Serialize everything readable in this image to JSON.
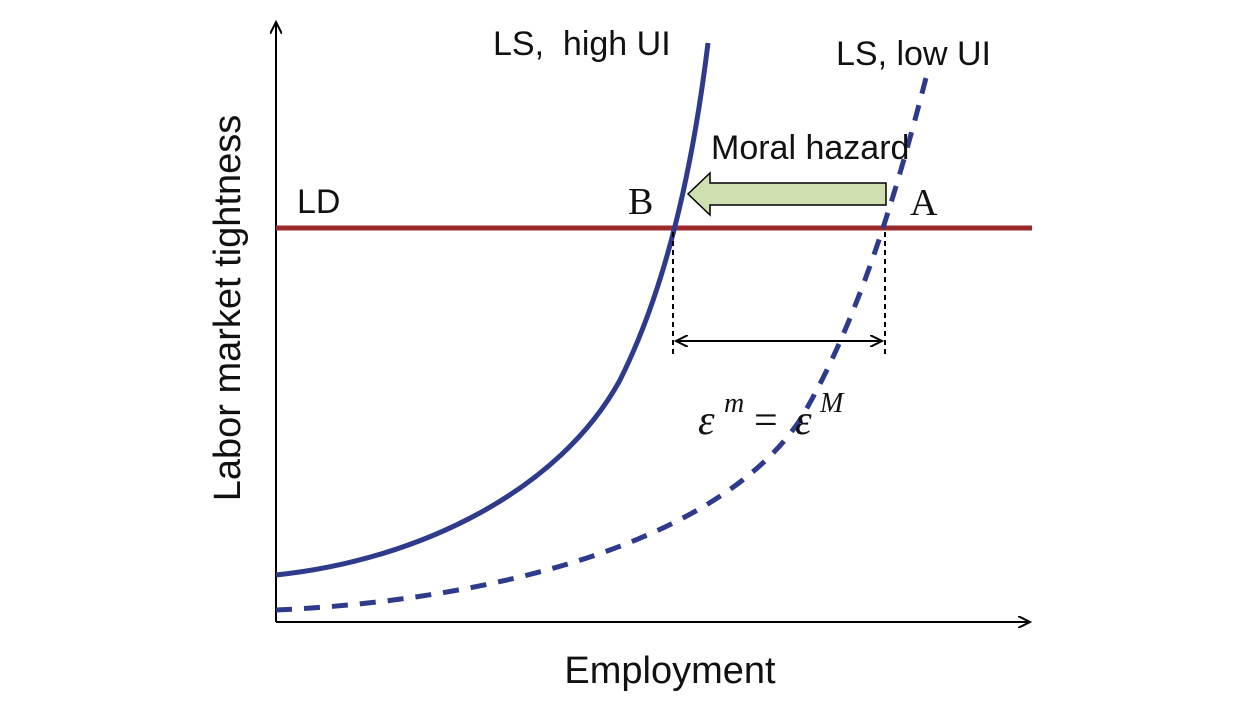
{
  "axes": {
    "x_label": "Employment",
    "y_label": "Labor market tightness"
  },
  "curves": {
    "ld": {
      "label": "LD",
      "color": "#9b2b2b"
    },
    "ls_high_ui": {
      "label": "LS,  high UI",
      "color": "#2e3a8c",
      "style": "solid"
    },
    "ls_low_ui": {
      "label": "LS, low UI",
      "color": "#2e3a8c",
      "style": "dashed"
    }
  },
  "points": {
    "a": "A",
    "b": "B"
  },
  "annotations": {
    "arrow_label": "Moral hazard",
    "arrow_fill": "#cfe0b0",
    "epsilon_symbol": "ε",
    "epsilon_m": "m",
    "equals": "=",
    "epsilon_M": "M"
  }
}
